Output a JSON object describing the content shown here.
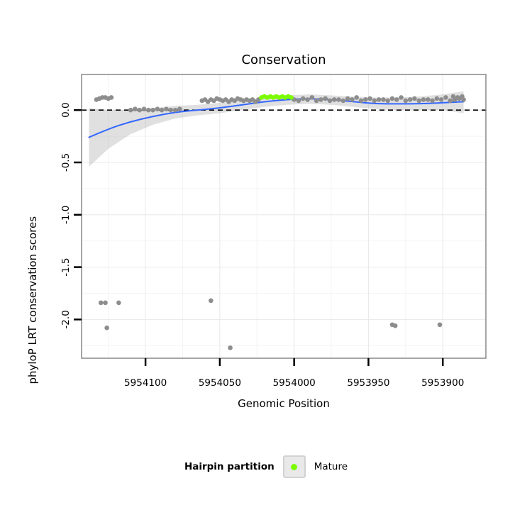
{
  "title": "Conservation",
  "axes": {
    "x_label": "Genomic Position",
    "y_label": "phyloP LRT conservation scores"
  },
  "legend": {
    "title": "Hairpin partition",
    "items": [
      {
        "label": "Mature",
        "color": "#7CFC00"
      }
    ]
  },
  "chart_data": {
    "type": "scatter",
    "title": "Conservation",
    "xlabel": "Genomic Position",
    "ylabel": "phyloP LRT conservation scores",
    "x_reversed": true,
    "x_domain": [
      5954143,
      5953871
    ],
    "y_domain": [
      0.34,
      -2.37
    ],
    "x_ticks": [
      5954100,
      5954050,
      5954000,
      5953950,
      5953900
    ],
    "x_tick_labels": [
      "5954100",
      "5954050",
      "5954000",
      "5953950",
      "5953900"
    ],
    "x_minor_ticks": [
      5954125,
      5954075,
      5954025,
      5953975,
      5953925
    ],
    "y_ticks": [
      0.0,
      -0.5,
      -1.0,
      -1.5,
      -2.0
    ],
    "y_tick_labels": [
      "0.0",
      "-0.5",
      "-1.0",
      "-1.5",
      "-2.0"
    ],
    "y_minor_ticks": [
      -0.25,
      -0.75,
      -1.25,
      -1.75,
      -2.25
    ],
    "zero_line_y": 0,
    "colors": {
      "points": "#8d8d8d",
      "mature": "#7CFC00",
      "smooth": "#3366FF",
      "ribbon": "#999999",
      "zero_line": "#000000",
      "grid_major": "#e8e8e8",
      "grid_minor": "#f4f4f4",
      "panel_border": "#7f7f7f",
      "axis": "#000000"
    },
    "series": [
      {
        "name": "phyloP scores",
        "role": "points",
        "color": "#8d8d8d",
        "points": [
          [
            5954133,
            0.1
          ],
          [
            5954131,
            0.11
          ],
          [
            5954129,
            0.12
          ],
          [
            5954127,
            0.12
          ],
          [
            5954125,
            0.11
          ],
          [
            5954123,
            0.12
          ],
          [
            5954110,
            0
          ],
          [
            5954107,
            0.01
          ],
          [
            5954104,
            0
          ],
          [
            5954101,
            0.01
          ],
          [
            5954098,
            0
          ],
          [
            5954095,
            0
          ],
          [
            5954092,
            0.01
          ],
          [
            5954089,
            0
          ],
          [
            5954086,
            0.01
          ],
          [
            5954083,
            0
          ],
          [
            5954080,
            0
          ],
          [
            5954077,
            0.01
          ],
          [
            5954062,
            0.09
          ],
          [
            5954060,
            0.1
          ],
          [
            5954058,
            0.08
          ],
          [
            5954056,
            0.1
          ],
          [
            5954054,
            0.09
          ],
          [
            5954052,
            0.11
          ],
          [
            5954050,
            0.1
          ],
          [
            5954048,
            0.09
          ],
          [
            5954046,
            0.1
          ],
          [
            5954044,
            0.08
          ],
          [
            5954042,
            0.1
          ],
          [
            5954040,
            0.09
          ],
          [
            5954038,
            0.11
          ],
          [
            5954036,
            0.1
          ],
          [
            5954034,
            0.09
          ],
          [
            5954032,
            0.1
          ],
          [
            5954030,
            0.09
          ],
          [
            5954028,
            0.1
          ],
          [
            5954026,
            0.08
          ],
          [
            5954024,
            0.1
          ],
          [
            5954000,
            0.1
          ],
          [
            5953997,
            0.09
          ],
          [
            5953994,
            0.11
          ],
          [
            5953991,
            0.1
          ],
          [
            5953988,
            0.12
          ],
          [
            5953985,
            0.09
          ],
          [
            5953982,
            0.1
          ],
          [
            5953979,
            0.11
          ],
          [
            5953976,
            0.09
          ],
          [
            5953973,
            0.1
          ],
          [
            5953970,
            0.1
          ],
          [
            5953967,
            0.09
          ],
          [
            5953964,
            0.11
          ],
          [
            5953961,
            0.1
          ],
          [
            5953958,
            0.12
          ],
          [
            5953955,
            0.09
          ],
          [
            5953952,
            0.1
          ],
          [
            5953949,
            0.11
          ],
          [
            5953946,
            0.09
          ],
          [
            5953943,
            0.1
          ],
          [
            5953940,
            0.1
          ],
          [
            5953937,
            0.09
          ],
          [
            5953934,
            0.11
          ],
          [
            5953931,
            0.1
          ],
          [
            5953928,
            0.12
          ],
          [
            5953925,
            0.09
          ],
          [
            5953922,
            0.1
          ],
          [
            5953919,
            0.11
          ],
          [
            5953916,
            0.09
          ],
          [
            5953913,
            0.1
          ],
          [
            5953910,
            0.1
          ],
          [
            5953907,
            0.09
          ],
          [
            5953904,
            0.11
          ],
          [
            5953901,
            0.1
          ],
          [
            5953898,
            0.12
          ],
          [
            5953895,
            0.09
          ],
          [
            5953892,
            0.1
          ],
          [
            5953889,
            0.11
          ],
          [
            5953886,
            0.1
          ],
          [
            5953893,
            0.13
          ],
          [
            5953890,
            0.12
          ],
          [
            5953887,
            0.13
          ],
          [
            5954130,
            -1.84
          ],
          [
            5954127,
            -1.84
          ],
          [
            5954118,
            -1.84
          ],
          [
            5954126,
            -2.08
          ],
          [
            5954056,
            -1.82
          ],
          [
            5954043,
            -2.27
          ],
          [
            5953934,
            -2.05
          ],
          [
            5953932,
            -2.06
          ],
          [
            5953902,
            -2.05
          ]
        ]
      },
      {
        "name": "Mature",
        "role": "points",
        "color": "#7CFC00",
        "points": [
          [
            5954022,
            0.12
          ],
          [
            5954020,
            0.13
          ],
          [
            5954018,
            0.12
          ],
          [
            5954016,
            0.13
          ],
          [
            5954014,
            0.12
          ],
          [
            5954012,
            0.13
          ],
          [
            5954010,
            0.12
          ],
          [
            5954008,
            0.13
          ],
          [
            5954006,
            0.12
          ],
          [
            5954004,
            0.13
          ],
          [
            5954002,
            0.12
          ]
        ]
      },
      {
        "name": "loess smooth",
        "role": "line",
        "color": "#3366FF",
        "points": [
          [
            5954138,
            -0.26
          ],
          [
            5954125,
            -0.18
          ],
          [
            5954110,
            -0.11
          ],
          [
            5954095,
            -0.06
          ],
          [
            5954080,
            -0.02
          ],
          [
            5954065,
            0
          ],
          [
            5954050,
            0.02
          ],
          [
            5954035,
            0.05
          ],
          [
            5954020,
            0.08
          ],
          [
            5954005,
            0.1
          ],
          [
            5953990,
            0.11
          ],
          [
            5953975,
            0.1
          ],
          [
            5953960,
            0.08
          ],
          [
            5953945,
            0.06
          ],
          [
            5953930,
            0.06
          ],
          [
            5953915,
            0.06
          ],
          [
            5953900,
            0.07
          ],
          [
            5953886,
            0.08
          ]
        ]
      },
      {
        "name": "confidence ribbon",
        "role": "ribbon",
        "color": "#999999",
        "x": [
          5954138,
          5954125,
          5954110,
          5954095,
          5954080,
          5954065,
          5954050,
          5954035,
          5954020,
          5954005,
          5953990,
          5953975,
          5953960,
          5953945,
          5953930,
          5953915,
          5953900,
          5953886
        ],
        "upper": [
          0.02,
          0,
          0,
          0.02,
          0.04,
          0.05,
          0.07,
          0.09,
          0.12,
          0.14,
          0.15,
          0.14,
          0.13,
          0.12,
          0.12,
          0.13,
          0.15,
          0.18
        ],
        "lower": [
          -0.54,
          -0.37,
          -0.23,
          -0.14,
          -0.08,
          -0.05,
          -0.03,
          0,
          0.03,
          0.05,
          0.06,
          0.05,
          0.03,
          0.01,
          0,
          0,
          0,
          -0.03
        ]
      }
    ]
  }
}
